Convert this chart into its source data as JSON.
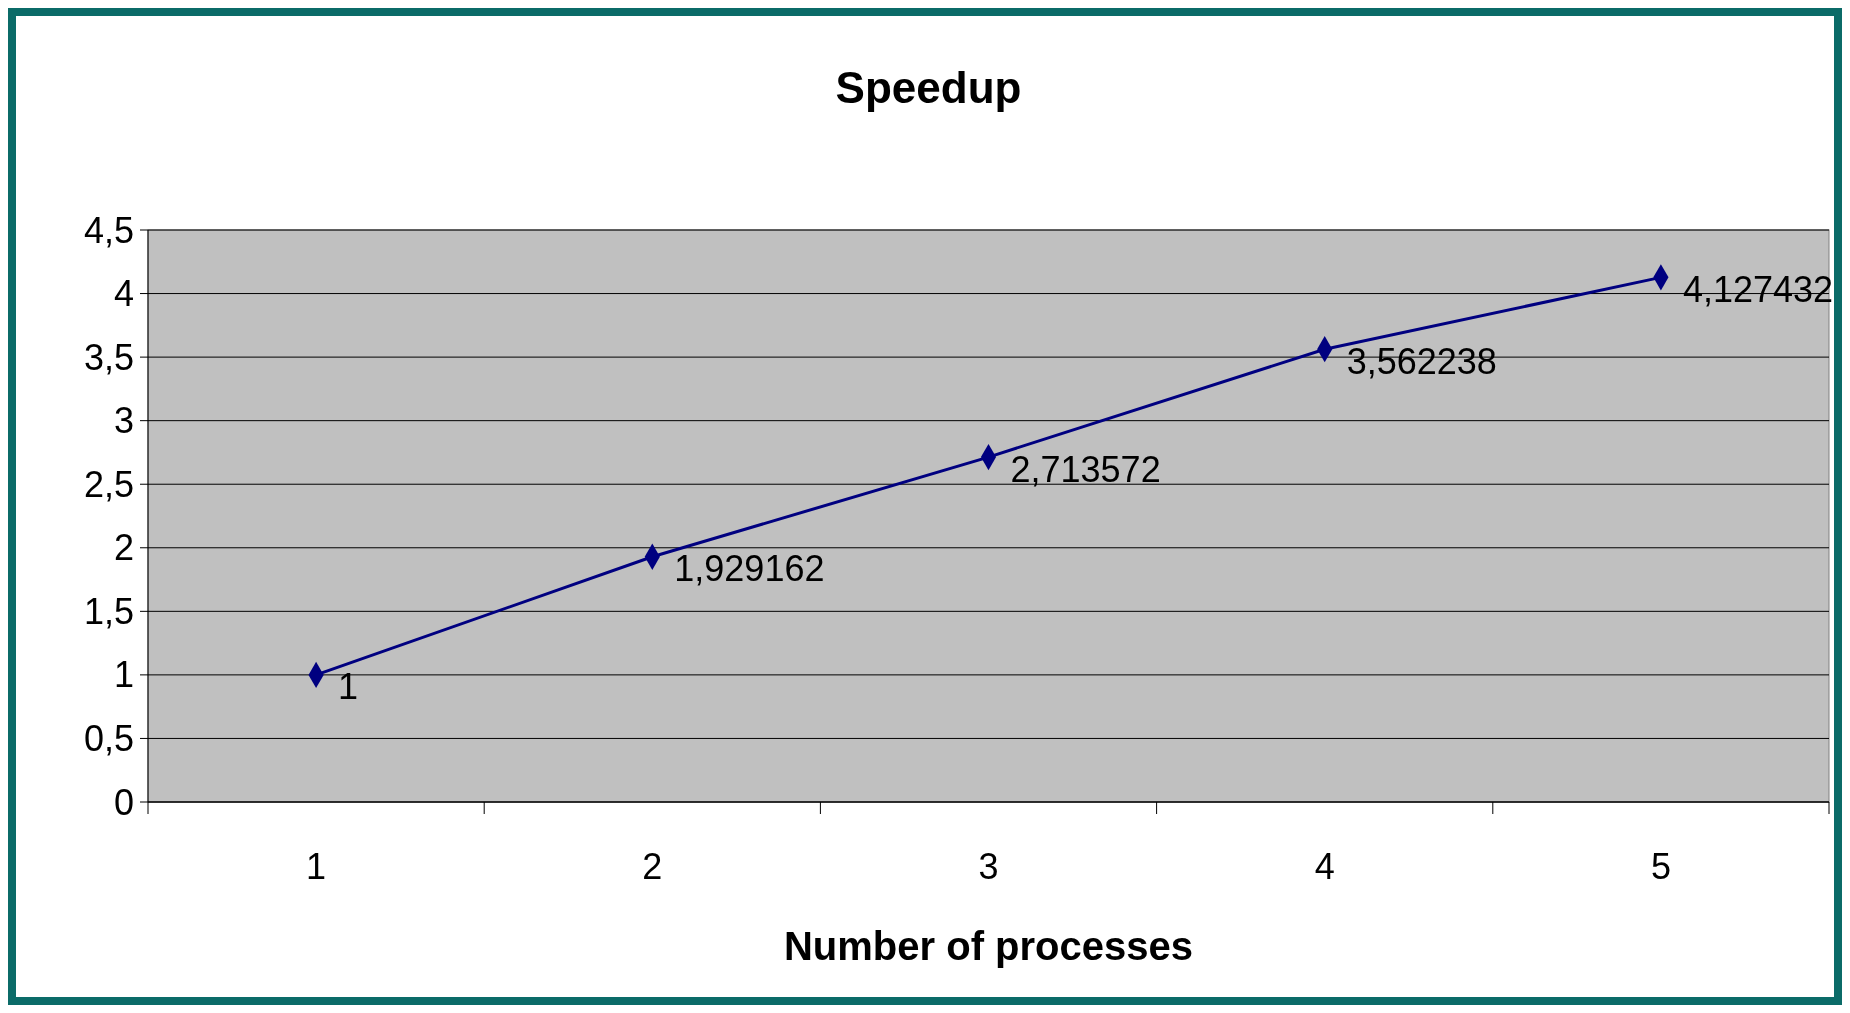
{
  "chart_data": {
    "type": "line",
    "title": "Speedup",
    "xlabel": "Number of processes",
    "categories": [
      "1",
      "2",
      "3",
      "4",
      "5"
    ],
    "series": [
      {
        "color": "#000080",
        "values": [
          1,
          1.929162,
          2.713572,
          3.562238,
          4.127432
        ],
        "value_labels": [
          "1",
          "1,929162",
          "2,713572",
          "3,562238",
          "4,127432"
        ]
      }
    ],
    "ylim": [
      0,
      4.5
    ],
    "yticks": [
      0,
      {
        "value": 0.5,
        "label": "0,5"
      },
      1,
      {
        "value": 1.5,
        "label": "1,5"
      },
      2,
      {
        "value": 2.5,
        "label": "2,5"
      },
      3,
      {
        "value": 3.5,
        "label": "3,5"
      },
      4,
      {
        "value": 4.5,
        "label": "4,5"
      }
    ],
    "grid": "y",
    "marker": "diamond",
    "line_style": "solid"
  }
}
